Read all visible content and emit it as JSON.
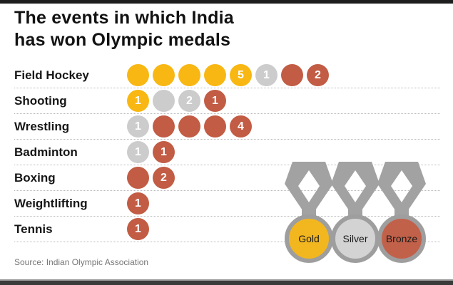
{
  "header": {
    "title_line1": "The events in which India",
    "title_line2": "has won Olympic medals"
  },
  "footer": {
    "source": "Source: Indian Olympic Association"
  },
  "colors": {
    "gold": "#F8B712",
    "silver": "#CCCCCC",
    "bronze": "#C25C44",
    "ribbon_gray": "#A2A2A2",
    "ring_gray": "#9E9E9E",
    "separator": "#B9B9B9",
    "number_text": "#FFFFFF",
    "title_text": "#121212",
    "source_text": "#757575",
    "accent_bar": "#1E1E1E"
  },
  "legend": {
    "medals": [
      {
        "label": "Gold",
        "fill": "#F2B61F"
      },
      {
        "label": "Silver",
        "fill": "#D3D3D3"
      },
      {
        "label": "Bronze",
        "fill": "#C2614A"
      }
    ]
  },
  "chart_data": {
    "type": "bar",
    "variant": "unit-pictogram",
    "title": "The events in which India has won Olympic medals",
    "categories": [
      "Field Hockey",
      "Shooting",
      "Wrestling",
      "Badminton",
      "Boxing",
      "Weightlifting",
      "Tennis"
    ],
    "series": [
      {
        "name": "Gold",
        "color": "#F8B712",
        "values": [
          5,
          1,
          0,
          0,
          0,
          0,
          0
        ]
      },
      {
        "name": "Silver",
        "color": "#CCCCCC",
        "values": [
          1,
          2,
          1,
          1,
          0,
          0,
          0
        ]
      },
      {
        "name": "Bronze",
        "color": "#C25C44",
        "values": [
          2,
          1,
          4,
          1,
          2,
          1,
          1
        ]
      }
    ],
    "unit_rule": "one circle per medal; the last circle of each colour carries the total count",
    "legend_position": "bottom-right",
    "grid": "dotted row separators",
    "source": "Source: Indian Olympic Association"
  }
}
